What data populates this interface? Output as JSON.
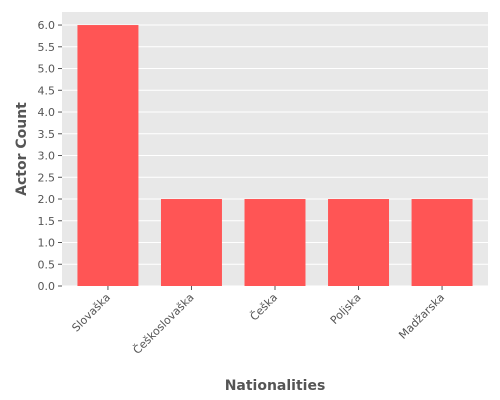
{
  "chart_data": {
    "type": "bar",
    "title": "",
    "xlabel": "Nationalities",
    "ylabel": "Actor Count",
    "categories": [
      "Slovaška",
      "Češkoslovaška",
      "Češka",
      "Poljska",
      "Madžarska"
    ],
    "values": [
      6,
      2,
      2,
      2,
      2
    ],
    "ylim": [
      0,
      6.3
    ],
    "yticks": [
      "0.0",
      "0.5",
      "1.0",
      "1.5",
      "2.0",
      "2.5",
      "3.0",
      "3.5",
      "4.0",
      "4.5",
      "5.0",
      "5.5",
      "6.0"
    ],
    "grid": true,
    "bar_color": "#ff5555",
    "background_color": "#e8e8e8",
    "grid_color": "#ffffff"
  }
}
